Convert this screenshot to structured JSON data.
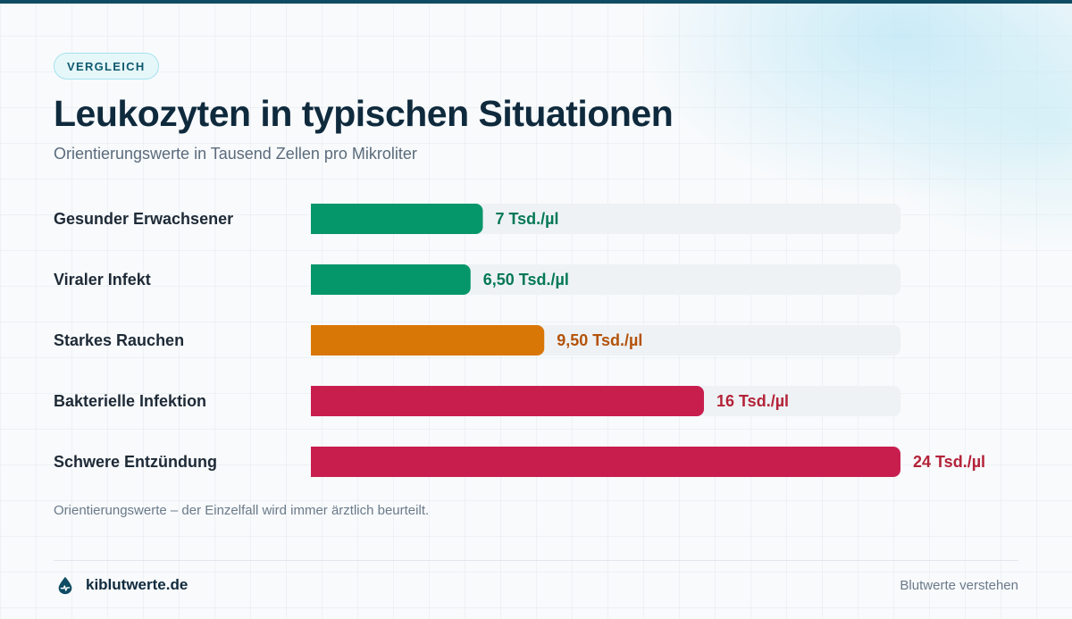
{
  "badge": "VERGLEICH",
  "title": "Leukozyten in typischen Situationen",
  "subtitle": "Orientierungswerte in Tausend Zellen pro Mikroliter",
  "footnote": "Orientierungswerte – der Einzelfall wird immer ärztlich beurteilt.",
  "footer": {
    "brand": "kiblutwerte.de",
    "tagline": "Blutwerte verstehen",
    "brand_icon": "blood-drop-icon"
  },
  "colors": {
    "green": "#059669",
    "orange": "#d97706",
    "red": "#c81e4e",
    "track": "#eef2f5"
  },
  "chart_data": {
    "type": "bar",
    "orientation": "horizontal",
    "unit": "Tsd./µl",
    "xlim": [
      0,
      24
    ],
    "grid": false,
    "categories": [
      "Gesunder Erwachsener",
      "Viraler Infekt",
      "Starkes Rauchen",
      "Bakterielle Infektion",
      "Schwere Entzündung"
    ],
    "values": [
      7,
      6.5,
      9.5,
      16,
      24
    ],
    "value_labels": [
      "7 Tsd./µl",
      "6,50 Tsd./µl",
      "9,50 Tsd./µl",
      "16 Tsd./µl",
      "24 Tsd./µl"
    ],
    "bar_colors": [
      "#059669",
      "#059669",
      "#d97706",
      "#c81e4e",
      "#c81e4e"
    ],
    "label_colors": [
      "#047857",
      "#047857",
      "#b45309",
      "#b42338",
      "#b42338"
    ]
  }
}
